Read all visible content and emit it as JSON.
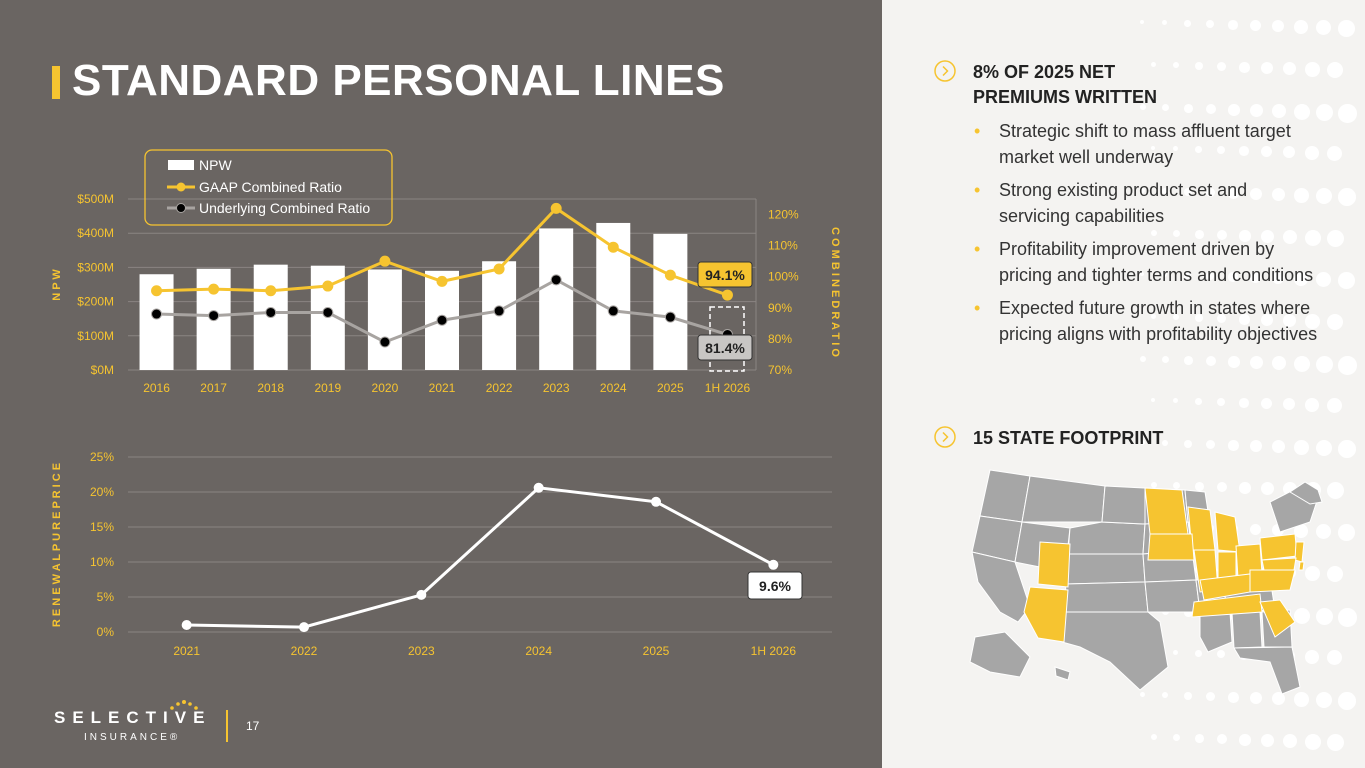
{
  "slide": {
    "title": "STANDARD PERSONAL LINES",
    "page_number": "17"
  },
  "logo": {
    "name": "SELECTIVE",
    "sub": "INSURANCE®"
  },
  "colors": {
    "background_left": "#6a6562",
    "accent": "#f6c430",
    "bars": "#ffffff",
    "underlying_line": "#a8a4a1"
  },
  "right_panel": {
    "section1": {
      "title_line1": "8% OF 2025 NET",
      "title_line2": "PREMIUMS WRITTEN",
      "icon": "chevron-right-circle-icon"
    },
    "bullets": [
      "Strategic shift to mass affluent target market well underway",
      "Strong existing product set and servicing capabilities",
      "Profitability improvement driven by pricing and tighter terms and conditions",
      "Expected future growth in states where pricing aligns with profitability objectives"
    ],
    "section2": {
      "title": "15 STATE FOOTPRINT",
      "icon": "chevron-right-circle-icon"
    },
    "map": {
      "icon": "us-map-icon",
      "highlight_color": "#f6c430",
      "base_color": "#a6a6a6"
    }
  },
  "chart_data": [
    {
      "type": "bar",
      "categories": [
        "2016",
        "2017",
        "2018",
        "2019",
        "2020",
        "2021",
        "2022",
        "2023",
        "2024",
        "2025",
        "1H 2026"
      ],
      "series": [
        {
          "name": "NPW",
          "type": "bar",
          "axis": "left",
          "values": [
            280,
            296,
            308,
            305,
            294,
            290,
            318,
            414,
            430,
            398,
            null
          ]
        },
        {
          "name": "GAAP Combined Ratio",
          "type": "line",
          "axis": "right",
          "values": [
            95.5,
            96,
            95.5,
            97,
            105,
            98.5,
            102.5,
            122,
            109.5,
            100.5,
            94.1
          ]
        },
        {
          "name": "Underlying Combined Ratio",
          "type": "line",
          "axis": "right",
          "values": [
            88,
            87.5,
            88.5,
            88.5,
            79,
            86,
            89,
            99,
            89,
            87,
            81.4
          ]
        }
      ],
      "ylabel": "N P W",
      "y2label": "C O M B I N E D   R A T I O",
      "yticks": [
        "$0M",
        "$100M",
        "$200M",
        "$300M",
        "$400M",
        "$500M"
      ],
      "y2ticks": [
        "70%",
        "80%",
        "90%",
        "100%",
        "110%",
        "120%"
      ],
      "ylim": [
        0,
        500
      ],
      "y2lim": [
        70,
        125
      ],
      "labels": {
        "gaap_last": "94.1%",
        "underlying_last": "81.4%"
      },
      "legend": "top-left",
      "grid": true
    },
    {
      "type": "line",
      "categories": [
        "2021",
        "2022",
        "2023",
        "2024",
        "2025",
        "1H 2026"
      ],
      "series": [
        {
          "values": [
            1.0,
            0.7,
            5.3,
            20.6,
            18.6,
            9.6
          ]
        }
      ],
      "ylabel": "R E N E W A L   P U R E   P R I C E",
      "yticks": [
        "0%",
        "5%",
        "10%",
        "15%",
        "20%",
        "25%"
      ],
      "ylim": [
        0,
        25
      ],
      "labels": {
        "last": "9.6%"
      },
      "grid": true
    }
  ]
}
